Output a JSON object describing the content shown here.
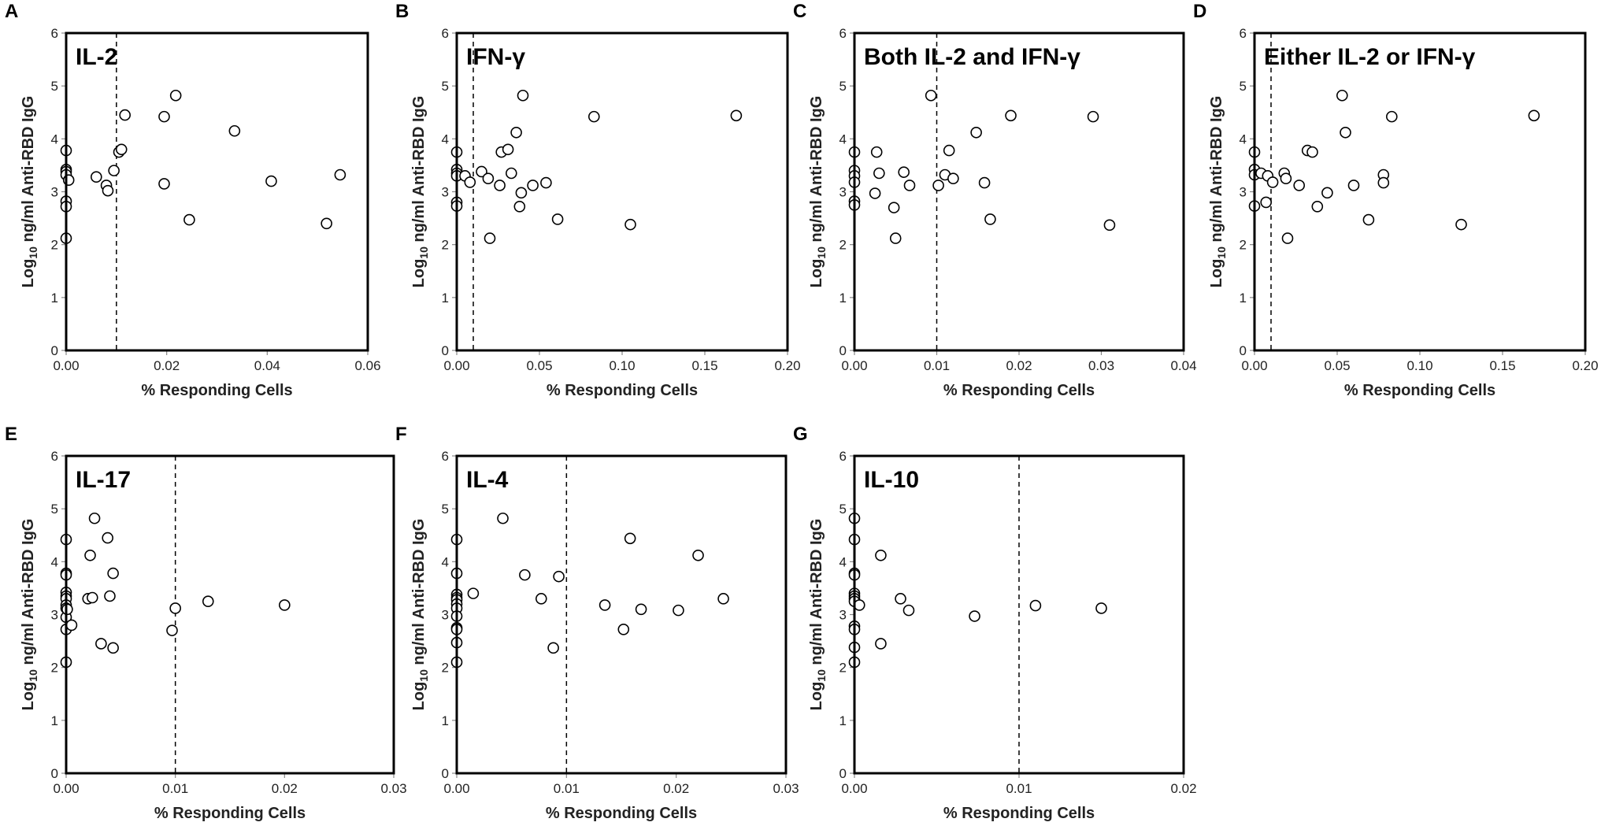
{
  "chart_data": [
    {
      "type": "scatter",
      "panel_label": "A",
      "title": "IL-2",
      "xlabel": "% Responding Cells",
      "ylabel": "Log10 ng/ml Anti-RBD IgG",
      "ylabel_main": "Log",
      "ylabel_sub": "10",
      "ylabel_rest": " ng/ml Anti-RBD IgG",
      "xlim": [
        0,
        0.06
      ],
      "ylim": [
        0,
        6
      ],
      "xticks": [
        0,
        0.02,
        0.04,
        0.06
      ],
      "xtick_labels": [
        "0.00",
        "0.02",
        "0.04",
        "0.06"
      ],
      "yticks": [
        0,
        1,
        2,
        3,
        4,
        5,
        6
      ],
      "ytick_labels": [
        "0",
        "1",
        "2",
        "3",
        "4",
        "5",
        "6"
      ],
      "threshold_x": 0.01,
      "points": [
        [
          0,
          3.78
        ],
        [
          0,
          3.42
        ],
        [
          0,
          3.38
        ],
        [
          0,
          3.32
        ],
        [
          0,
          2.82
        ],
        [
          0,
          2.72
        ],
        [
          0,
          2.12
        ],
        [
          0.0005,
          3.22
        ],
        [
          0.006,
          3.28
        ],
        [
          0.008,
          3.12
        ],
        [
          0.0083,
          3.02
        ],
        [
          0.0095,
          3.4
        ],
        [
          0.0105,
          3.75
        ],
        [
          0.011,
          3.8
        ],
        [
          0.0117,
          4.45
        ],
        [
          0.0195,
          4.42
        ],
        [
          0.0195,
          3.15
        ],
        [
          0.0218,
          4.82
        ],
        [
          0.0245,
          2.47
        ],
        [
          0.0335,
          4.15
        ],
        [
          0.0408,
          3.2
        ],
        [
          0.0518,
          2.4
        ],
        [
          0.0545,
          3.32
        ]
      ]
    },
    {
      "type": "scatter",
      "panel_label": "B",
      "title": "IFN-γ",
      "xlabel": "% Responding Cells",
      "ylabel": "Log10 ng/ml Anti-RBD IgG",
      "ylabel_main": "Log",
      "ylabel_sub": "10",
      "ylabel_rest": " ng/ml Anti-RBD IgG",
      "xlim": [
        0,
        0.2
      ],
      "ylim": [
        0,
        6
      ],
      "xticks": [
        0,
        0.05,
        0.1,
        0.15,
        0.2
      ],
      "xtick_labels": [
        "0.00",
        "0.05",
        "0.10",
        "0.15",
        "0.20"
      ],
      "yticks": [
        0,
        1,
        2,
        3,
        4,
        5,
        6
      ],
      "ytick_labels": [
        "0",
        "1",
        "2",
        "3",
        "4",
        "5",
        "6"
      ],
      "threshold_x": 0.01,
      "points": [
        [
          0,
          3.75
        ],
        [
          0,
          3.42
        ],
        [
          0,
          3.35
        ],
        [
          0,
          3.3
        ],
        [
          0,
          2.8
        ],
        [
          0,
          2.73
        ],
        [
          0.005,
          3.3
        ],
        [
          0.008,
          3.18
        ],
        [
          0.015,
          3.38
        ],
        [
          0.019,
          3.25
        ],
        [
          0.02,
          2.12
        ],
        [
          0.026,
          3.12
        ],
        [
          0.027,
          3.75
        ],
        [
          0.031,
          3.8
        ],
        [
          0.033,
          3.35
        ],
        [
          0.036,
          4.12
        ],
        [
          0.038,
          2.72
        ],
        [
          0.039,
          2.98
        ],
        [
          0.04,
          4.82
        ],
        [
          0.046,
          3.12
        ],
        [
          0.054,
          3.17
        ],
        [
          0.061,
          2.48
        ],
        [
          0.083,
          4.42
        ],
        [
          0.105,
          2.38
        ],
        [
          0.169,
          4.44
        ]
      ]
    },
    {
      "type": "scatter",
      "panel_label": "C",
      "title": "Both IL-2 and IFN-γ",
      "xlabel": "% Responding Cells",
      "ylabel": "Log10 ng/ml Anti-RBD IgG",
      "ylabel_main": "Log",
      "ylabel_sub": "10",
      "ylabel_rest": " ng/ml Anti-RBD IgG",
      "xlim": [
        0,
        0.04
      ],
      "ylim": [
        0,
        6
      ],
      "xticks": [
        0,
        0.01,
        0.02,
        0.03,
        0.04
      ],
      "xtick_labels": [
        "0.00",
        "0.01",
        "0.02",
        "0.03",
        "0.04"
      ],
      "yticks": [
        0,
        1,
        2,
        3,
        4,
        5,
        6
      ],
      "ytick_labels": [
        "0",
        "1",
        "2",
        "3",
        "4",
        "5",
        "6"
      ],
      "threshold_x": 0.01,
      "points": [
        [
          0,
          3.75
        ],
        [
          0,
          3.4
        ],
        [
          0,
          3.3
        ],
        [
          0,
          3.18
        ],
        [
          0,
          2.82
        ],
        [
          0,
          2.75
        ],
        [
          0.0025,
          2.97
        ],
        [
          0.0027,
          3.75
        ],
        [
          0.003,
          3.35
        ],
        [
          0.0048,
          2.7
        ],
        [
          0.005,
          2.12
        ],
        [
          0.006,
          3.37
        ],
        [
          0.0067,
          3.12
        ],
        [
          0.0093,
          4.82
        ],
        [
          0.0102,
          3.12
        ],
        [
          0.011,
          3.32
        ],
        [
          0.0115,
          3.78
        ],
        [
          0.012,
          3.25
        ],
        [
          0.0148,
          4.12
        ],
        [
          0.0158,
          3.17
        ],
        [
          0.0165,
          2.48
        ],
        [
          0.019,
          4.44
        ],
        [
          0.029,
          4.42
        ],
        [
          0.031,
          2.37
        ]
      ]
    },
    {
      "type": "scatter",
      "panel_label": "D",
      "title": "Either IL-2 or IFN-γ",
      "xlabel": "% Responding Cells",
      "ylabel": "Log10 ng/ml Anti-RBD IgG",
      "ylabel_main": "Log",
      "ylabel_sub": "10",
      "ylabel_rest": " ng/ml Anti-RBD IgG",
      "xlim": [
        0,
        0.2
      ],
      "ylim": [
        0,
        6
      ],
      "xticks": [
        0,
        0.05,
        0.1,
        0.15,
        0.2
      ],
      "xtick_labels": [
        "0.00",
        "0.05",
        "0.10",
        "0.15",
        "0.20"
      ],
      "yticks": [
        0,
        1,
        2,
        3,
        4,
        5,
        6
      ],
      "ytick_labels": [
        "0",
        "1",
        "2",
        "3",
        "4",
        "5",
        "6"
      ],
      "threshold_x": 0.01,
      "points": [
        [
          0,
          3.75
        ],
        [
          0,
          3.42
        ],
        [
          0,
          3.32
        ],
        [
          0,
          2.73
        ],
        [
          0.004,
          3.35
        ],
        [
          0.007,
          2.8
        ],
        [
          0.008,
          3.3
        ],
        [
          0.011,
          3.18
        ],
        [
          0.018,
          3.35
        ],
        [
          0.019,
          3.25
        ],
        [
          0.02,
          2.12
        ],
        [
          0.027,
          3.12
        ],
        [
          0.032,
          3.78
        ],
        [
          0.035,
          3.75
        ],
        [
          0.038,
          2.72
        ],
        [
          0.044,
          2.98
        ],
        [
          0.053,
          4.82
        ],
        [
          0.055,
          4.12
        ],
        [
          0.06,
          3.12
        ],
        [
          0.069,
          2.47
        ],
        [
          0.078,
          3.32
        ],
        [
          0.078,
          3.17
        ],
        [
          0.083,
          4.42
        ],
        [
          0.125,
          2.38
        ],
        [
          0.169,
          4.44
        ]
      ]
    },
    {
      "type": "scatter",
      "panel_label": "E",
      "title": "IL-17",
      "xlabel": "% Responding Cells",
      "ylabel": "Log10 ng/ml Anti-RBD IgG",
      "ylabel_main": "Log",
      "ylabel_sub": "10",
      "ylabel_rest": " ng/ml Anti-RBD IgG",
      "xlim": [
        0,
        0.03
      ],
      "ylim": [
        0,
        6
      ],
      "xticks": [
        0,
        0.01,
        0.02,
        0.03
      ],
      "xtick_labels": [
        "0.00",
        "0.01",
        "0.02",
        "0.03"
      ],
      "yticks": [
        0,
        1,
        2,
        3,
        4,
        5,
        6
      ],
      "ytick_labels": [
        "0",
        "1",
        "2",
        "3",
        "4",
        "5",
        "6"
      ],
      "threshold_x": 0.01,
      "points": [
        [
          0,
          4.42
        ],
        [
          0,
          3.78
        ],
        [
          0,
          3.75
        ],
        [
          0,
          3.42
        ],
        [
          0,
          3.35
        ],
        [
          0,
          3.3
        ],
        [
          0,
          3.18
        ],
        [
          0,
          3.12
        ],
        [
          0,
          2.95
        ],
        [
          0,
          2.72
        ],
        [
          0,
          2.1
        ],
        [
          0.0001,
          3.1
        ],
        [
          0.0005,
          2.8
        ],
        [
          0.002,
          3.3
        ],
        [
          0.0022,
          4.12
        ],
        [
          0.0024,
          3.32
        ],
        [
          0.0026,
          4.82
        ],
        [
          0.0032,
          2.45
        ],
        [
          0.0038,
          4.45
        ],
        [
          0.004,
          3.35
        ],
        [
          0.0043,
          3.78
        ],
        [
          0.0043,
          2.37
        ],
        [
          0.0097,
          2.7
        ],
        [
          0.01,
          3.12
        ],
        [
          0.013,
          3.25
        ],
        [
          0.02,
          3.18
        ]
      ]
    },
    {
      "type": "scatter",
      "panel_label": "F",
      "title": "IL-4",
      "xlabel": "% Responding Cells",
      "ylabel": "Log10 ng/ml Anti-RBD IgG",
      "ylabel_main": "Log",
      "ylabel_sub": "10",
      "ylabel_rest": " ng/ml Anti-RBD IgG",
      "xlim": [
        0,
        0.03
      ],
      "ylim": [
        0,
        6
      ],
      "xticks": [
        0,
        0.01,
        0.02,
        0.03
      ],
      "xtick_labels": [
        "0.00",
        "0.01",
        "0.02",
        "0.03"
      ],
      "yticks": [
        0,
        1,
        2,
        3,
        4,
        5,
        6
      ],
      "ytick_labels": [
        "0",
        "1",
        "2",
        "3",
        "4",
        "5",
        "6"
      ],
      "threshold_x": 0.01,
      "points": [
        [
          0,
          4.42
        ],
        [
          0,
          3.78
        ],
        [
          0,
          3.38
        ],
        [
          0,
          3.32
        ],
        [
          0,
          3.28
        ],
        [
          0,
          3.2
        ],
        [
          0,
          3.12
        ],
        [
          0,
          2.97
        ],
        [
          0,
          2.75
        ],
        [
          0,
          2.72
        ],
        [
          0,
          2.47
        ],
        [
          0,
          2.1
        ],
        [
          0.0015,
          3.4
        ],
        [
          0.0042,
          4.82
        ],
        [
          0.0062,
          3.75
        ],
        [
          0.0077,
          3.3
        ],
        [
          0.0088,
          2.37
        ],
        [
          0.0093,
          3.72
        ],
        [
          0.0135,
          3.18
        ],
        [
          0.0152,
          2.72
        ],
        [
          0.0158,
          4.44
        ],
        [
          0.0168,
          3.1
        ],
        [
          0.0202,
          3.08
        ],
        [
          0.022,
          4.12
        ],
        [
          0.0243,
          3.3
        ]
      ]
    },
    {
      "type": "scatter",
      "panel_label": "G",
      "title": "IL-10",
      "xlabel": "% Responding Cells",
      "ylabel": "Log10 ng/ml Anti-RBD IgG",
      "ylabel_main": "Log",
      "ylabel_sub": "10",
      "ylabel_rest": " ng/ml Anti-RBD IgG",
      "xlim": [
        0,
        0.02
      ],
      "ylim": [
        0,
        6
      ],
      "xticks": [
        0,
        0.01,
        0.02
      ],
      "xtick_labels": [
        "0.00",
        "0.01",
        "0.02"
      ],
      "yticks": [
        0,
        1,
        2,
        3,
        4,
        5,
        6
      ],
      "ytick_labels": [
        "0",
        "1",
        "2",
        "3",
        "4",
        "5",
        "6"
      ],
      "threshold_x": 0.01,
      "points": [
        [
          0,
          4.82
        ],
        [
          0,
          4.42
        ],
        [
          0,
          3.78
        ],
        [
          0,
          3.75
        ],
        [
          0,
          3.4
        ],
        [
          0,
          3.35
        ],
        [
          0,
          3.3
        ],
        [
          0,
          3.25
        ],
        [
          0,
          2.78
        ],
        [
          0,
          2.72
        ],
        [
          0,
          2.38
        ],
        [
          0,
          2.1
        ],
        [
          0.0003,
          3.18
        ],
        [
          0.0016,
          4.12
        ],
        [
          0.0016,
          2.45
        ],
        [
          0.0028,
          3.3
        ],
        [
          0.0033,
          3.08
        ],
        [
          0.0073,
          2.97
        ],
        [
          0.011,
          3.17
        ],
        [
          0.015,
          3.12
        ]
      ]
    }
  ]
}
